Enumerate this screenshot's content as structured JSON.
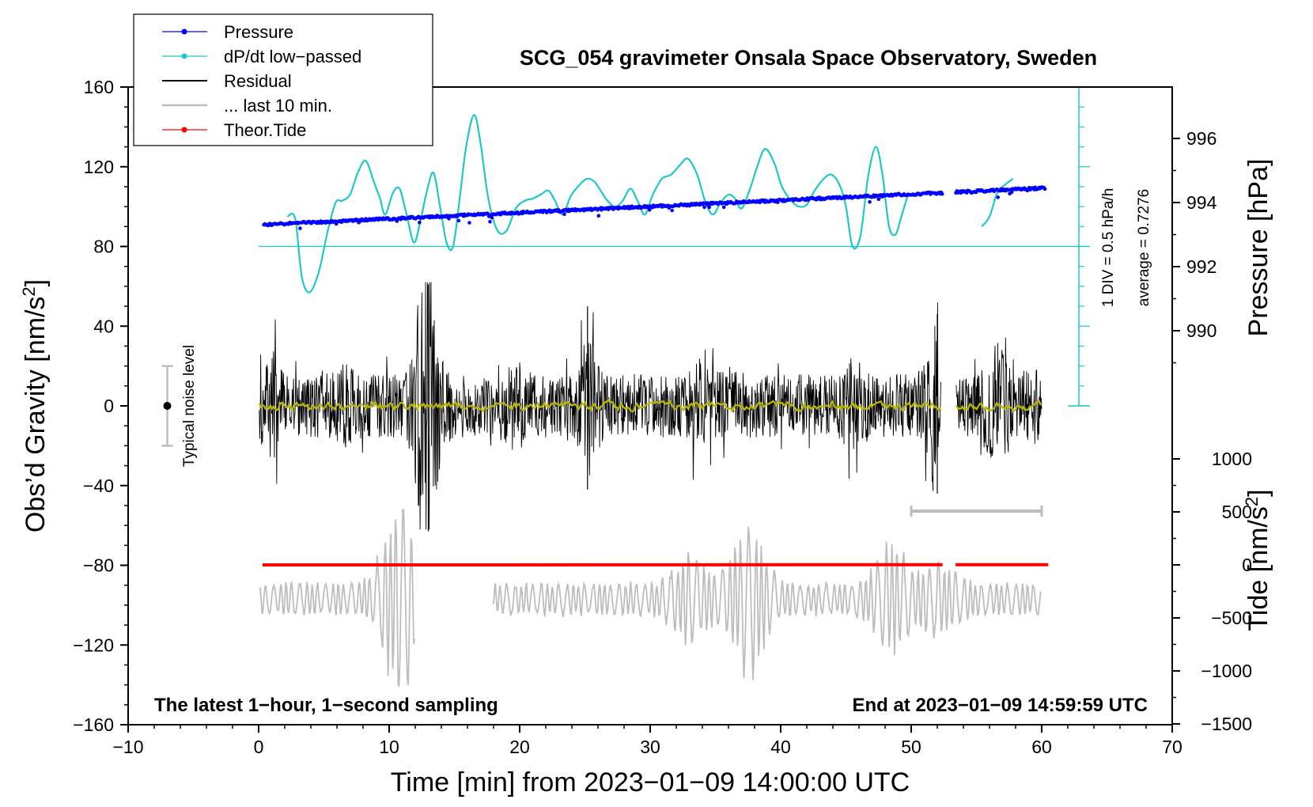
{
  "chart_data": {
    "type": "line",
    "title": "SCG_054 gravimeter Onsala Space Observatory, Sweden",
    "xlabel": "Time [min] from 2023−01−09 14:00:00 UTC",
    "ylabel_left": "Obs’d Gravity [nm/s",
    "ylabel_left_sup": "2",
    "ylabel_left_end": "]",
    "ylabel_right_pressure": "Pressure [hPa]",
    "ylabel_right_tide": "Tide [nm/s",
    "ylabel_right_tide_sup": "2",
    "ylabel_right_tide_end": "]",
    "xlim": [
      -10,
      70
    ],
    "ylim_left": [
      -160,
      160
    ],
    "x_ticks": [
      "−10",
      "0",
      "10",
      "20",
      "30",
      "40",
      "50",
      "60",
      "70"
    ],
    "x_tick_values": [
      -10,
      0,
      10,
      20,
      30,
      40,
      50,
      60,
      70
    ],
    "y_ticks_left": [
      "160",
      "120",
      "80",
      "40",
      "0",
      "−40",
      "−80",
      "−120",
      "−160"
    ],
    "y_tick_values_left": [
      160,
      120,
      80,
      40,
      0,
      -40,
      -80,
      -120,
      -160
    ],
    "pressure_ticks": [
      "996",
      "994",
      "992",
      "990"
    ],
    "pressure_tick_values": [
      996,
      994,
      992,
      990
    ],
    "pressure_range_hpa": [
      993.3,
      994.45
    ],
    "tide_ticks": [
      "1000",
      "500",
      "0",
      "−500",
      "−1000",
      "−1500"
    ],
    "tide_tick_values": [
      1000,
      500,
      0,
      -500,
      -1000,
      -1500
    ],
    "tide_range_nms2": [
      -14,
      16
    ],
    "legend": [
      {
        "label": "Pressure",
        "color": "#0000ff",
        "marker": true
      },
      {
        "label": "dP/dt low−passed",
        "color": "#1fc8c8",
        "marker": true
      },
      {
        "label": "Residual",
        "color": "#000000",
        "marker": false
      },
      {
        "label": "... last 10 min.",
        "color": "#bdbdbd",
        "marker": false
      },
      {
        "label": "Theor.Tide",
        "color": "#ff0000",
        "marker": true
      }
    ],
    "dpdt_scale_text": "1 DIV = 0.5 hPa/h",
    "dpdt_average_text": "average = 0.7276",
    "noise_label": "Typical noise level",
    "noise_level_range": [
      -20,
      20
    ],
    "footer_left": "The latest 1−hour, 1−second sampling",
    "footer_right": "End at 2023−01−09 14:59:59 UTC",
    "data_gap_min": [
      52.4,
      53.4
    ],
    "last10_range_min": [
      50,
      60
    ],
    "dpdt_curve": [
      [
        2.2,
        95
      ],
      [
        2.8,
        94
      ],
      [
        3.3,
        65
      ],
      [
        3.9,
        57
      ],
      [
        4.6,
        67
      ],
      [
        5.3,
        88
      ],
      [
        5.9,
        102
      ],
      [
        6.4,
        103
      ],
      [
        7.0,
        106
      ],
      [
        7.6,
        117
      ],
      [
        8.2,
        123
      ],
      [
        8.8,
        113
      ],
      [
        9.3,
        104
      ],
      [
        9.7,
        96
      ],
      [
        10.3,
        107
      ],
      [
        10.8,
        109
      ],
      [
        11.3,
        97
      ],
      [
        11.9,
        82
      ],
      [
        12.4,
        93
      ],
      [
        12.9,
        108
      ],
      [
        13.4,
        117
      ],
      [
        13.9,
        100
      ],
      [
        14.4,
        82
      ],
      [
        14.9,
        80
      ],
      [
        15.4,
        104
      ],
      [
        15.9,
        130
      ],
      [
        16.5,
        146
      ],
      [
        17.0,
        132
      ],
      [
        17.6,
        104
      ],
      [
        18.3,
        88
      ],
      [
        19.0,
        88
      ],
      [
        19.7,
        99
      ],
      [
        20.4,
        103
      ],
      [
        21.0,
        104
      ],
      [
        21.6,
        106
      ],
      [
        22.2,
        108
      ],
      [
        22.7,
        103
      ],
      [
        23.3,
        96
      ],
      [
        23.9,
        105
      ],
      [
        24.6,
        111
      ],
      [
        25.2,
        114
      ],
      [
        25.8,
        112
      ],
      [
        26.6,
        104
      ],
      [
        27.3,
        100
      ],
      [
        27.9,
        103
      ],
      [
        28.5,
        109
      ],
      [
        29.1,
        102
      ],
      [
        29.6,
        96
      ],
      [
        30.2,
        106
      ],
      [
        30.9,
        114
      ],
      [
        31.6,
        116
      ],
      [
        32.3,
        121
      ],
      [
        32.9,
        124
      ],
      [
        33.6,
        116
      ],
      [
        34.2,
        103
      ],
      [
        34.8,
        96
      ],
      [
        35.4,
        102
      ],
      [
        36.0,
        106
      ],
      [
        36.5,
        104
      ],
      [
        37.0,
        99
      ],
      [
        37.6,
        108
      ],
      [
        38.2,
        120
      ],
      [
        38.8,
        129
      ],
      [
        39.5,
        122
      ],
      [
        40.1,
        110
      ],
      [
        40.8,
        103
      ],
      [
        41.4,
        100
      ],
      [
        42.0,
        101
      ],
      [
        42.6,
        108
      ],
      [
        43.3,
        114
      ],
      [
        43.9,
        116
      ],
      [
        44.5,
        111
      ],
      [
        45.0,
        100
      ],
      [
        45.5,
        80
      ],
      [
        46.1,
        85
      ],
      [
        46.7,
        115
      ],
      [
        47.3,
        130
      ],
      [
        47.8,
        116
      ],
      [
        48.3,
        90
      ],
      [
        48.8,
        86
      ],
      [
        49.2,
        94
      ],
      [
        49.7,
        105
      ],
      null,
      [
        55.4,
        90
      ],
      [
        56.0,
        95
      ],
      [
        56.6,
        107
      ],
      [
        57.2,
        111
      ],
      [
        57.8,
        114
      ]
    ],
    "dpdt_baseline": 80,
    "tide_curve": [
      [
        0.3,
        0
      ],
      [
        30,
        1
      ],
      [
        52.4,
        2
      ],
      null,
      [
        53.4,
        2
      ],
      [
        60.5,
        2
      ]
    ],
    "residual_envelope_min_max_nms2": [
      -63,
      62
    ],
    "last10_amplitude_nms2": [
      -143,
      -50
    ]
  }
}
